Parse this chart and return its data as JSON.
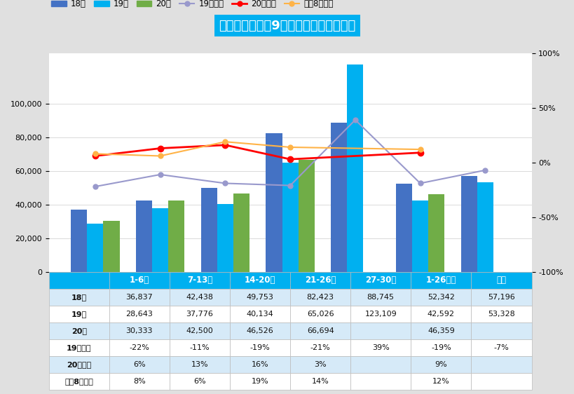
{
  "title": "乘联会主要厂商9月周度零售数量和增速",
  "categories": [
    "1-6日",
    "7-13日",
    "14-20日",
    "21-26日",
    "27-30日",
    "1-26日均",
    "全月"
  ],
  "bar_18": [
    36837,
    42438,
    49753,
    82423,
    88745,
    52342,
    57196
  ],
  "bar_19": [
    28643,
    37776,
    40134,
    65026,
    123109,
    42592,
    53328
  ],
  "bar_20": [
    30333,
    42500,
    46526,
    66694,
    null,
    46359,
    null
  ],
  "line_19yoy": [
    -0.22,
    -0.11,
    -0.19,
    -0.21,
    0.39,
    -0.19,
    -0.07
  ],
  "line_20yoy": [
    0.06,
    0.13,
    0.16,
    0.03,
    null,
    0.09,
    null
  ],
  "line_mom": [
    0.08,
    0.06,
    0.19,
    0.14,
    null,
    0.12,
    null
  ],
  "bar_color_18": "#4472C4",
  "bar_color_19": "#00B0F0",
  "bar_color_20": "#70AD47",
  "line_color_19yoy": "#9999CC",
  "line_color_20yoy": "#FF0000",
  "line_color_mom": "#FFB347",
  "title_bg_color": "#00B0F0",
  "title_font_color": "#FFFFFF",
  "legend_labels": [
    "18年",
    "19年",
    "20年",
    "19年同比",
    "20年同比",
    "环比8月同期"
  ],
  "ylim_left": [
    0,
    130000
  ],
  "ylim_right": [
    -1.0,
    1.0
  ],
  "table_header_bg": "#00B0F0",
  "table_header_fg": "#FFFFFF",
  "table_row_labels": [
    "18年",
    "19年",
    "20年",
    "19年同比",
    "20年同比",
    "环比8月同期"
  ],
  "table_row_bg_even": "#FFFFFF",
  "table_row_bg_odd": "#D6EAF8",
  "table_data": [
    [
      "36,837",
      "42,438",
      "49,753",
      "82,423",
      "88,745",
      "52,342",
      "57,196"
    ],
    [
      "28,643",
      "37,776",
      "40,134",
      "65,026",
      "123,109",
      "42,592",
      "53,328"
    ],
    [
      "30,333",
      "42,500",
      "46,526",
      "66,694",
      "",
      "46,359",
      ""
    ],
    [
      "-22%",
      "-11%",
      "-19%",
      "-21%",
      "39%",
      "-19%",
      "-7%"
    ],
    [
      "6%",
      "13%",
      "16%",
      "3%",
      "",
      "9%",
      ""
    ],
    [
      "8%",
      "6%",
      "19%",
      "14%",
      "",
      "12%",
      ""
    ]
  ],
  "fig_bg_color": "#E0E0E0",
  "plot_bg_color": "#FFFFFF",
  "right_ytick_values": [
    -1.0,
    -0.5,
    0.0,
    0.5,
    1.0
  ],
  "right_ytick_labels": [
    "-100%",
    "-50%",
    "0%",
    "50%",
    "100%"
  ]
}
